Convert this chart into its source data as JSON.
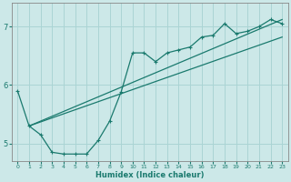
{
  "title": "",
  "xlabel": "Humidex (Indice chaleur)",
  "ylabel": "",
  "bg_color": "#cce8e8",
  "grid_color": "#aad4d4",
  "line_color": "#1a7a6e",
  "spine_color": "#888888",
  "xlim": [
    -0.5,
    23.5
  ],
  "ylim": [
    4.7,
    7.4
  ],
  "xticks": [
    0,
    1,
    2,
    3,
    4,
    5,
    6,
    7,
    8,
    9,
    10,
    11,
    12,
    13,
    14,
    15,
    16,
    17,
    18,
    19,
    20,
    21,
    22,
    23
  ],
  "yticks": [
    5,
    6,
    7
  ],
  "line1_x": [
    0,
    1,
    2,
    3,
    4,
    5,
    6,
    7,
    8,
    9,
    10,
    11,
    12,
    13,
    14,
    15,
    16,
    17,
    18,
    19,
    20,
    21,
    22,
    23
  ],
  "line1_y": [
    5.9,
    5.3,
    5.15,
    4.85,
    4.82,
    4.82,
    4.82,
    5.05,
    5.38,
    5.88,
    6.55,
    6.55,
    6.4,
    6.55,
    6.6,
    6.65,
    6.82,
    6.85,
    7.05,
    6.88,
    6.92,
    7.0,
    7.12,
    7.05
  ],
  "line2_x": [
    1,
    23
  ],
  "line2_y": [
    5.3,
    7.12
  ],
  "line3_x": [
    1,
    23
  ],
  "line3_y": [
    5.3,
    6.82
  ]
}
